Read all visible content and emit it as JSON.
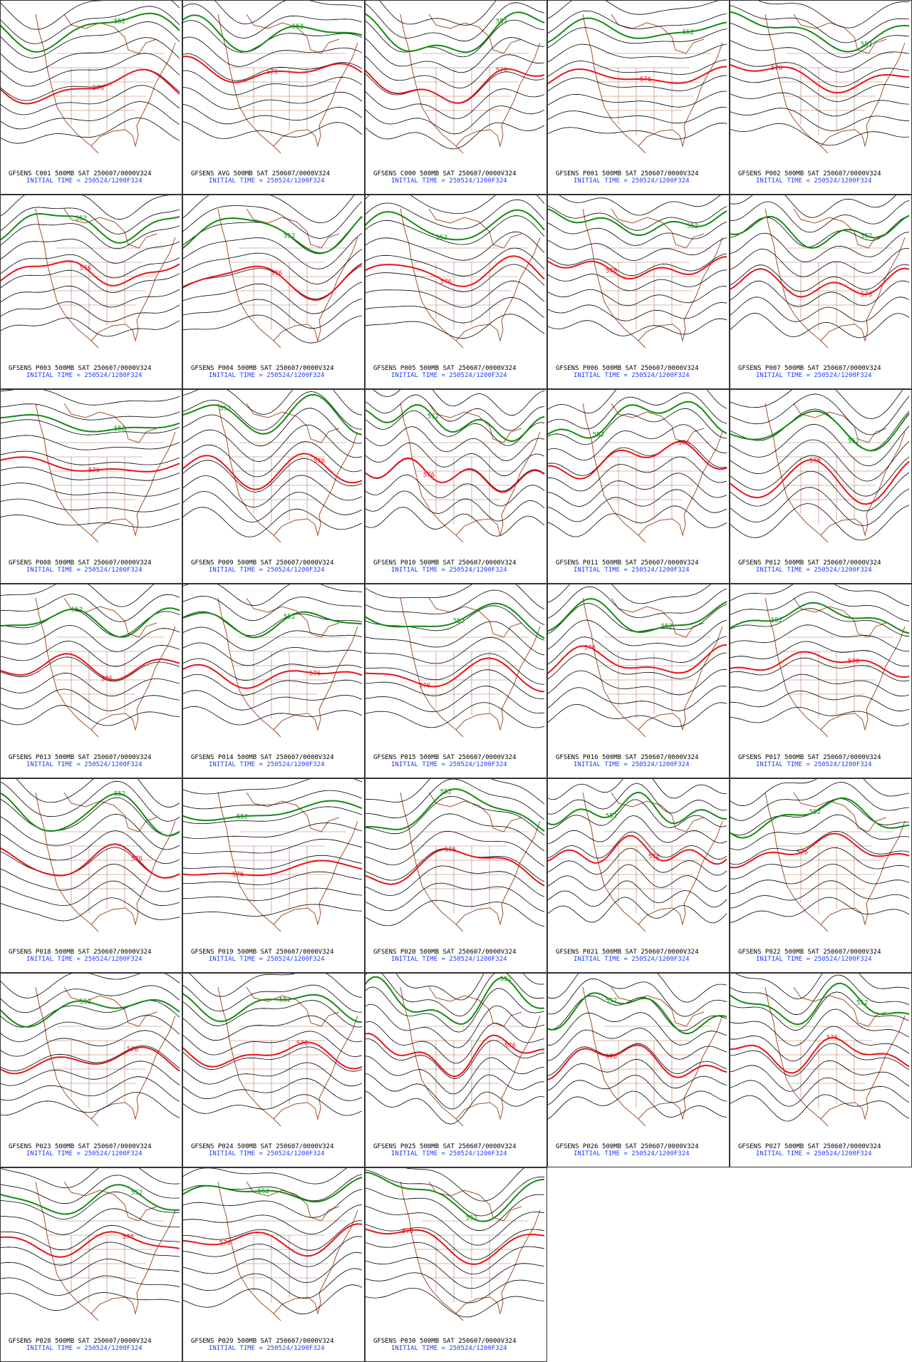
{
  "panels": [
    {
      "title": "GFSENS C001 500MB SAT 250607/0000V324",
      "init": "INITIAL TIME = 250524/1200F324",
      "labels": [
        "552",
        "576"
      ]
    },
    {
      "title": "GFSENS AVG 500MB SAT 250607/0000V324",
      "init": "INITIAL TIME = 250524/1200F324",
      "labels": [
        "552",
        "576"
      ]
    },
    {
      "title": "GFSENS C000 500MB SAT 250607/0000V324",
      "init": "INITIAL TIME = 250524/1200F324",
      "labels": [
        "552",
        "576"
      ]
    },
    {
      "title": "GFSENS P001 500MB SAT 250607/0000V324",
      "init": "INITIAL TIME = 250524/1200F324",
      "labels": [
        "552",
        "576"
      ]
    },
    {
      "title": "GFSENS P002 500MB SAT 250607/0000V324",
      "init": "INITIAL TIME = 250524/1200F324",
      "labels": [
        "552",
        "576"
      ]
    },
    {
      "title": "GFSENS P003 500MB SAT 250607/0000V324",
      "init": "INITIAL TIME = 250524/1200F324",
      "labels": [
        "552",
        "576"
      ]
    },
    {
      "title": "GFSENS P004 500MB SAT 250607/0000V324",
      "init": "INITIAL TIME = 250524/1200F324",
      "labels": [
        "552",
        "576"
      ]
    },
    {
      "title": "GFSENS P005 500MB SAT 250607/0000V324",
      "init": "INITIAL TIME = 250524/1200F324",
      "labels": [
        "552",
        "576"
      ]
    },
    {
      "title": "GFSENS P006 500MB SAT 250607/0000V324",
      "init": "INITIAL TIME = 250524/1200F324",
      "labels": [
        "552",
        "576"
      ]
    },
    {
      "title": "GFSENS P007 500MB SAT 250607/0000V324",
      "init": "INITIAL TIME = 250524/1200F324",
      "labels": [
        "552",
        "576"
      ]
    },
    {
      "title": "GFSENS P008 500MB SAT 250607/0000V324",
      "init": "INITIAL TIME = 250524/1200F324",
      "labels": [
        "552",
        "576"
      ]
    },
    {
      "title": "GFSENS P009 500MB SAT 250607/0000V324",
      "init": "INITIAL TIME = 250524/1200F324",
      "labels": [
        "552",
        "576"
      ]
    },
    {
      "title": "GFSENS P010 500MB SAT 250607/0000V324",
      "init": "INITIAL TIME = 250524/1200F324",
      "labels": [
        "552",
        "576"
      ]
    },
    {
      "title": "GFSENS P011 500MB SAT 250607/0000V324",
      "init": "INITIAL TIME = 250524/1200F324",
      "labels": [
        "552",
        "576"
      ]
    },
    {
      "title": "GFSENS P012 500MB SAT 250607/0000V324",
      "init": "INITIAL TIME = 250524/1200F324",
      "labels": [
        "552",
        "576"
      ]
    },
    {
      "title": "GFSENS P013 500MB SAT 250607/0000V324",
      "init": "INITIAL TIME = 250524/1200F324",
      "labels": [
        "552",
        "576"
      ]
    },
    {
      "title": "GFSENS P014 500MB SAT 250607/0000V324",
      "init": "INITIAL TIME = 250524/1200F324",
      "labels": [
        "552",
        "576"
      ]
    },
    {
      "title": "GFSENS P015 500MB SAT 250607/0000V324",
      "init": "INITIAL TIME = 250524/1200F324",
      "labels": [
        "552",
        "576"
      ]
    },
    {
      "title": "GFSENS P016 500MB SAT 250607/0000V324",
      "init": "INITIAL TIME = 250524/1200F324",
      "labels": [
        "552",
        "576"
      ]
    },
    {
      "title": "GFSENS P017 500MB SAT 250607/0000V324",
      "init": "INITIAL TIME = 250524/1200F324",
      "labels": [
        "552",
        "576"
      ]
    },
    {
      "title": "GFSENS P018 500MB SAT 250607/0000V324",
      "init": "INITIAL TIME = 250524/1200F324",
      "labels": [
        "552",
        "576"
      ]
    },
    {
      "title": "GFSENS P019 500MB SAT 250607/0000V324",
      "init": "INITIAL TIME = 250524/1200F324",
      "labels": [
        "552",
        "576"
      ]
    },
    {
      "title": "GFSENS P020 500MB SAT 250607/0000V324",
      "init": "INITIAL TIME = 250524/1200F324",
      "labels": [
        "552",
        "576"
      ]
    },
    {
      "title": "GFSENS P021 500MB SAT 250607/0000V324",
      "init": "INITIAL TIME = 250524/1200F324",
      "labels": [
        "552",
        "576"
      ]
    },
    {
      "title": "GFSENS P022 500MB SAT 250607/0000V324",
      "init": "INITIAL TIME = 250524/1200F324",
      "labels": [
        "552",
        "576"
      ]
    },
    {
      "title": "GFSENS P023 500MB SAT 250607/0000V324",
      "init": "INITIAL TIME = 250524/1200F324",
      "labels": [
        "552",
        "576"
      ]
    },
    {
      "title": "GFSENS P024 500MB SAT 250607/0000V324",
      "init": "INITIAL TIME = 250524/1200F324",
      "labels": [
        "552",
        "576"
      ]
    },
    {
      "title": "GFSENS P025 500MB SAT 250607/0000V324",
      "init": "INITIAL TIME = 250524/1200F324",
      "labels": [
        "552",
        "576"
      ]
    },
    {
      "title": "GFSENS P026 500MB SAT 250607/0000V324",
      "init": "INITIAL TIME = 250524/1200F324",
      "labels": [
        "552",
        "576"
      ]
    },
    {
      "title": "GFSENS P027 500MB SAT 250607/0000V324",
      "init": "INITIAL TIME = 250524/1200F324",
      "labels": [
        "552",
        "576"
      ]
    },
    {
      "title": "GFSENS P028 500MB SAT 250607/0000V324",
      "init": "INITIAL TIME = 250524/1200F324",
      "labels": [
        "552",
        "576"
      ]
    },
    {
      "title": "GFSENS P029 500MB SAT 250607/0000V324",
      "init": "INITIAL TIME = 250524/1200F324",
      "labels": [
        "552",
        "576"
      ]
    },
    {
      "title": "GFSENS P030 500MB SAT 250607/0000V324",
      "init": "INITIAL TIME = 250524/1200F324",
      "labels": [
        "552",
        "576"
      ]
    }
  ]
}
